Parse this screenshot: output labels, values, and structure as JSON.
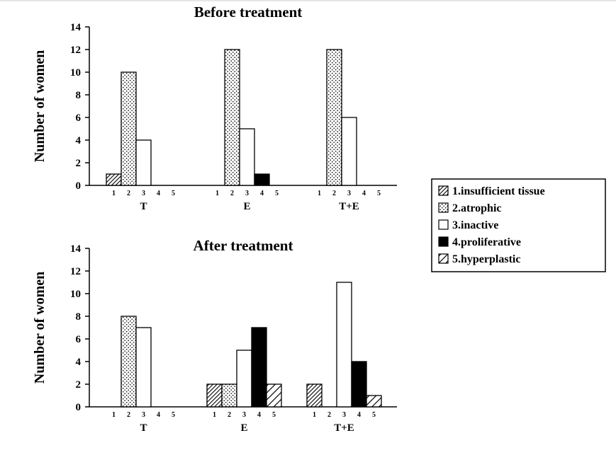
{
  "chart_data": [
    {
      "type": "bar",
      "title": "Before treatment",
      "ylabel": "Number of women",
      "xlabel": "",
      "ylim": [
        0,
        14
      ],
      "yticks": [
        0,
        2,
        4,
        6,
        8,
        10,
        12,
        14
      ],
      "groups": [
        "T",
        "E",
        "T+E"
      ],
      "categories": [
        "1",
        "2",
        "3",
        "4",
        "5"
      ],
      "series": [
        {
          "name": "T",
          "values": [
            1,
            10,
            4,
            0,
            0
          ]
        },
        {
          "name": "E",
          "values": [
            0,
            12,
            5,
            1,
            0
          ]
        },
        {
          "name": "T+E",
          "values": [
            0,
            12,
            6,
            0,
            0
          ]
        }
      ]
    },
    {
      "type": "bar",
      "title": "After treatment",
      "ylabel": "Number of women",
      "xlabel": "",
      "ylim": [
        0,
        14
      ],
      "yticks": [
        0,
        2,
        4,
        6,
        8,
        10,
        12,
        14
      ],
      "groups": [
        "T",
        "E",
        "T+E"
      ],
      "categories": [
        "1",
        "2",
        "3",
        "4",
        "5"
      ],
      "series": [
        {
          "name": "T",
          "values": [
            0,
            8,
            7,
            0,
            0
          ]
        },
        {
          "name": "E",
          "values": [
            2,
            2,
            5,
            7,
            2
          ]
        },
        {
          "name": "T+E",
          "values": [
            2,
            0,
            11,
            4,
            1
          ]
        }
      ]
    }
  ],
  "legend": {
    "items": [
      {
        "label": "1.insufficient tissue",
        "pattern": "diag-dense"
      },
      {
        "label": "2.atrophic",
        "pattern": "dots"
      },
      {
        "label": "3.inactive",
        "pattern": "white"
      },
      {
        "label": "4.proliferative",
        "pattern": "black"
      },
      {
        "label": "5.hyperplastic",
        "pattern": "diag-wide"
      }
    ]
  }
}
